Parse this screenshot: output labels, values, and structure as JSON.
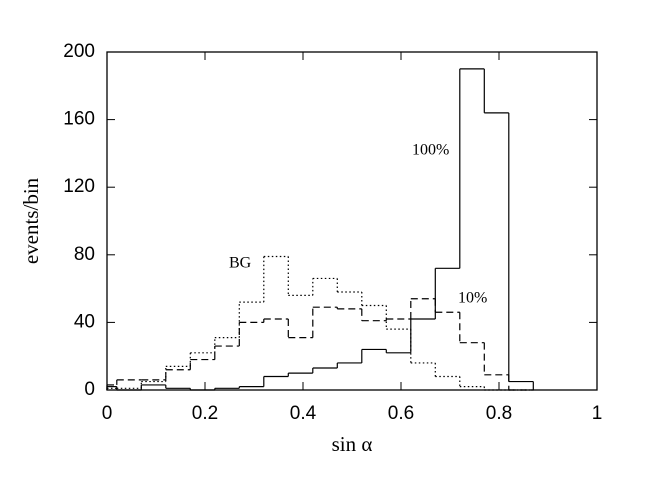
{
  "chart_data": {
    "type": "histogram",
    "xlabel": "sin α",
    "ylabel": "events/bin",
    "bins": [
      0,
      0.02,
      0.07,
      0.12,
      0.17,
      0.22,
      0.27,
      0.32,
      0.37,
      0.42,
      0.47,
      0.52,
      0.57,
      0.62,
      0.67,
      0.72,
      0.77,
      0.82,
      0.87
    ],
    "series": [
      {
        "name": "100%",
        "color": "#000000",
        "dash": "solid",
        "values": [
          2,
          0,
          3,
          1,
          0,
          1,
          2,
          8,
          10,
          13,
          16,
          24,
          22,
          42,
          72,
          190,
          164,
          5
        ]
      },
      {
        "name": "10%",
        "color": "#000000",
        "dash": "dashed",
        "values": [
          3,
          6,
          6,
          12,
          18,
          26,
          40,
          42,
          31,
          49,
          48,
          41,
          42,
          54,
          46,
          28,
          9,
          0
        ]
      },
      {
        "name": "BG",
        "color": "#000000",
        "dash": "dotted",
        "values": [
          1,
          1,
          5,
          14,
          22,
          31,
          52,
          79,
          56,
          66,
          58,
          50,
          36,
          16,
          8,
          2,
          0,
          0
        ]
      }
    ],
    "xlim": [
      0,
      1
    ],
    "xticks": [
      0,
      0.2,
      0.4,
      0.6,
      0.8,
      1
    ],
    "ylim": [
      0,
      200
    ],
    "yticks": [
      0,
      40,
      80,
      120,
      160,
      200
    ]
  }
}
